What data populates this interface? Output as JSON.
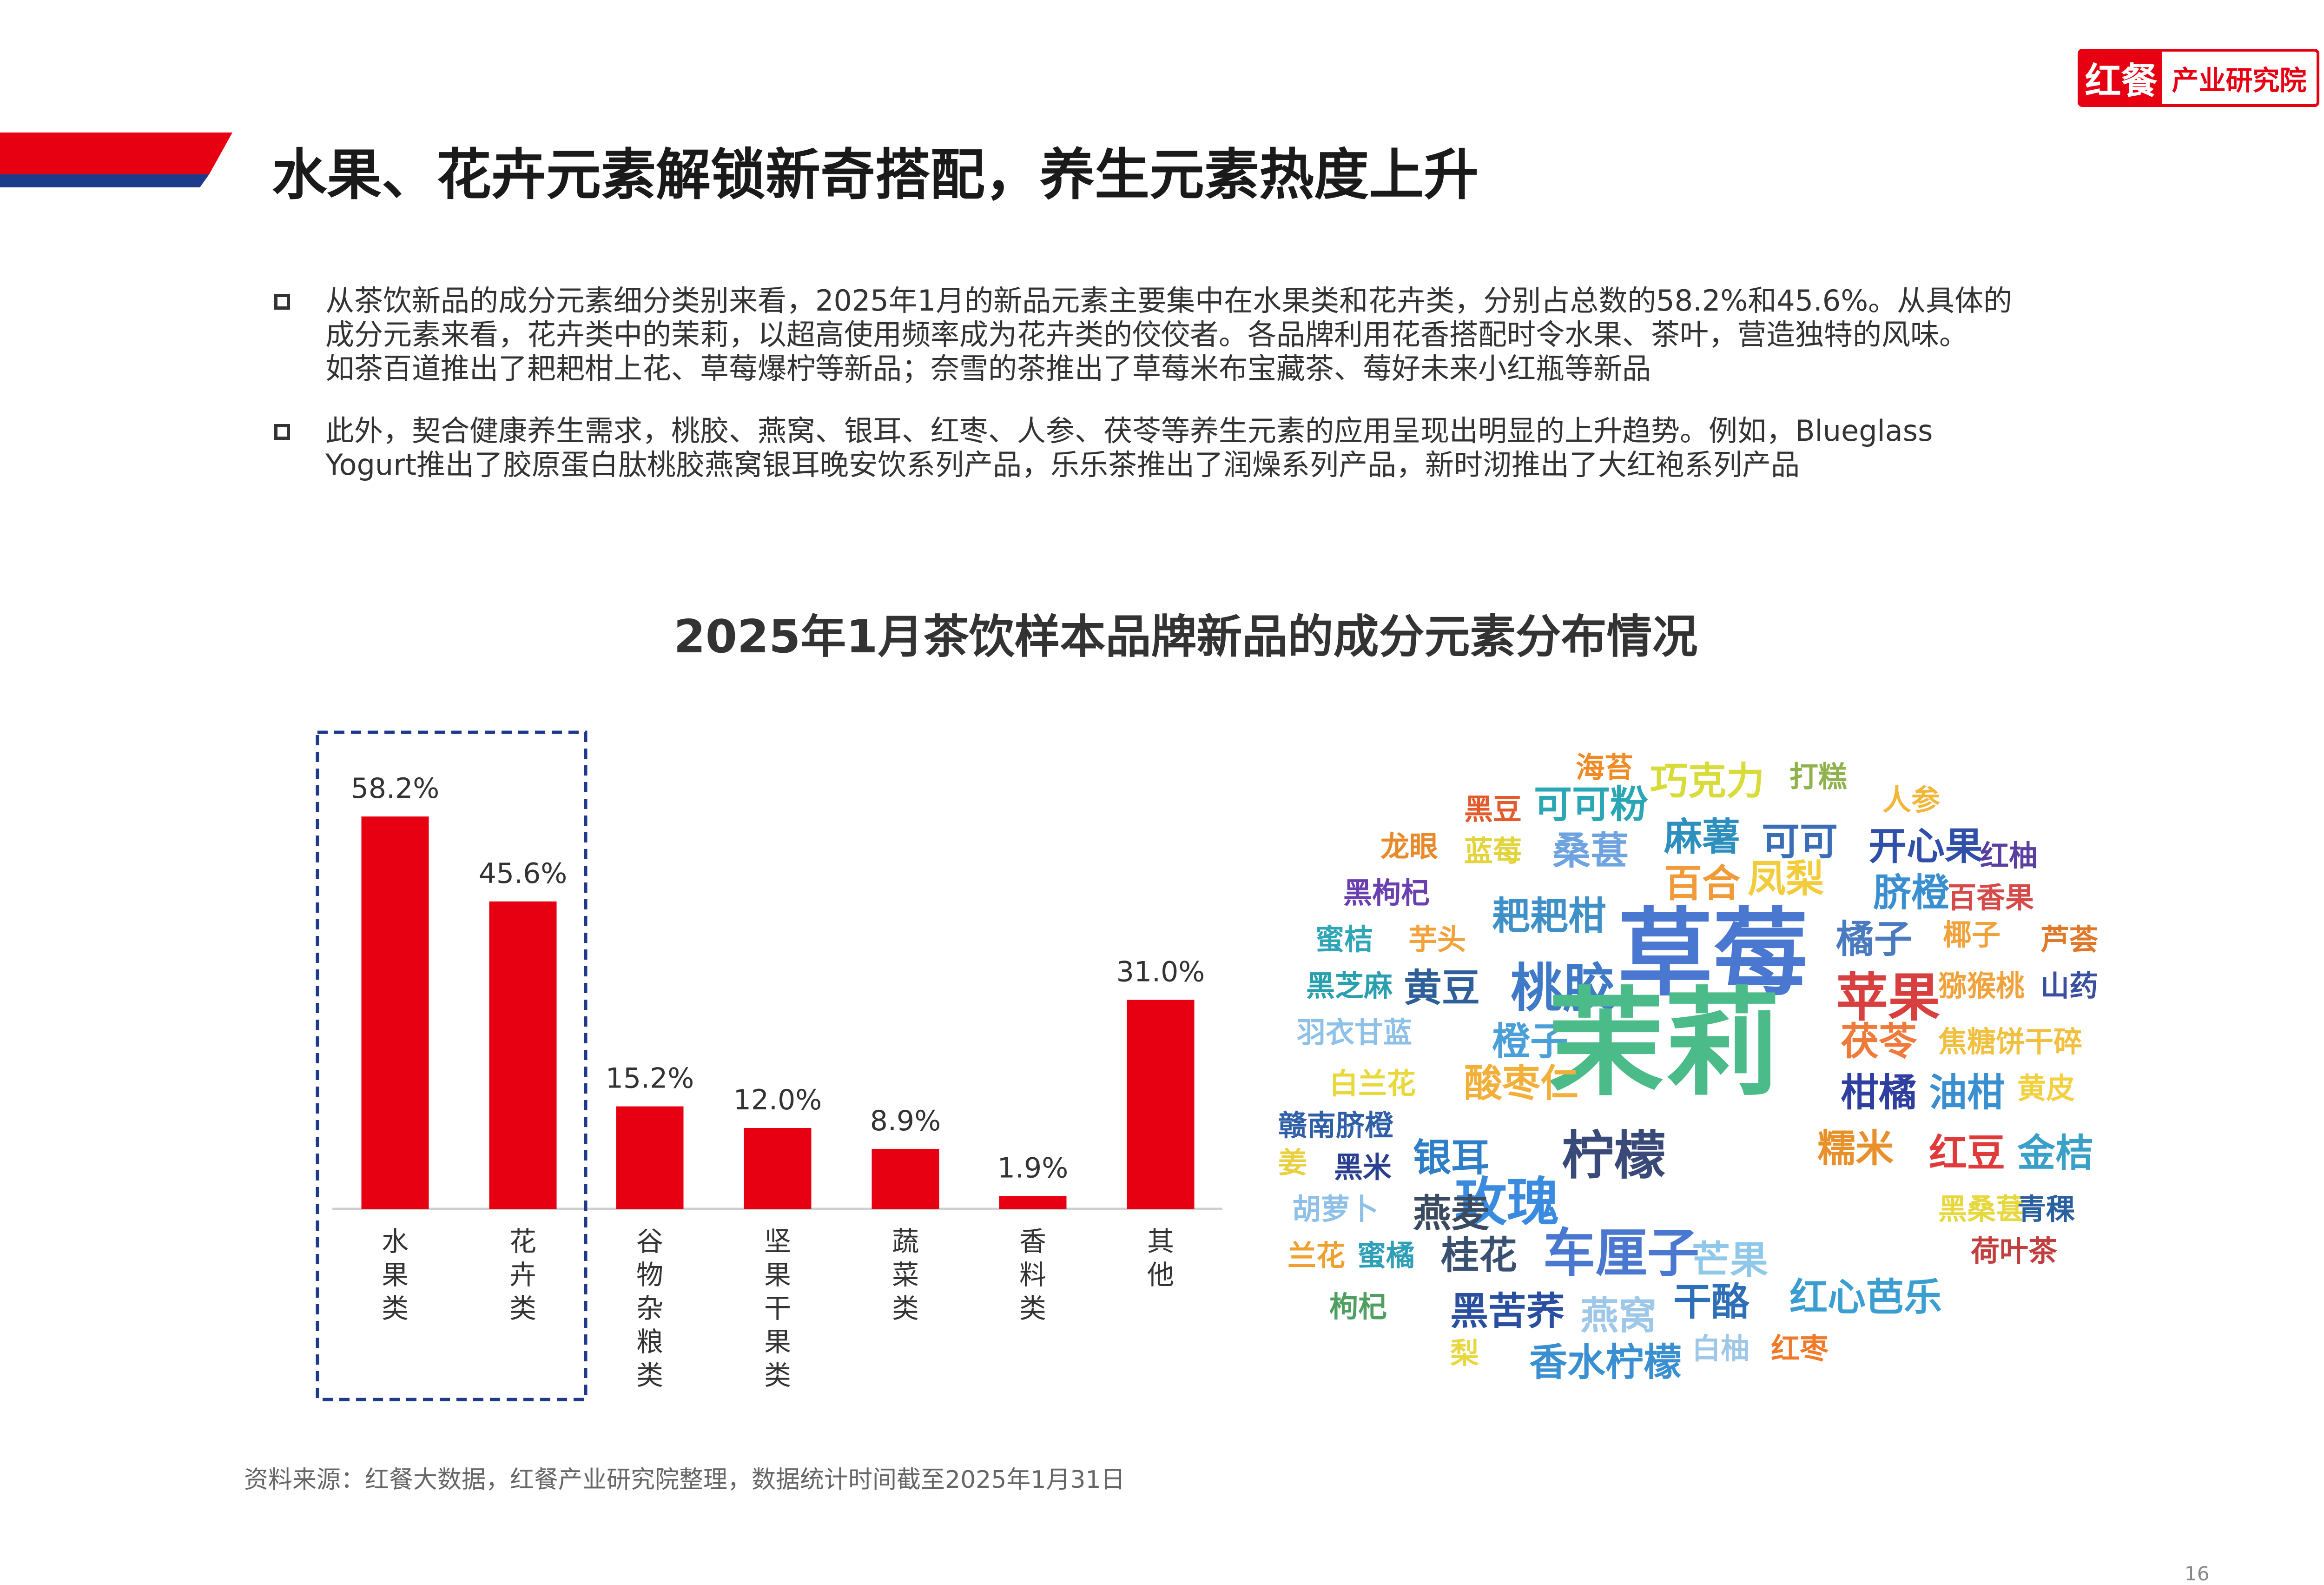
{
  "logo": {
    "mark": "红餐",
    "text": "产业研究院"
  },
  "page_title": "水果、花卉元素解锁新奇搭配，养生元素热度上升",
  "bullets": [
    {
      "lines": [
        "从茶饮新品的成分元素细分类别来看，2025年1月的新品元素主要集中在水果类和花卉类，分别占总数的58.2%和45.6%。从具体的",
        "成分元素来看，花卉类中的茉莉，以超高使用频率成为花卉类的佼佼者。各品牌利用花香搭配时令水果、茶叶，营造独特的风味。",
        "如茶百道推出了耙耙柑上花、草莓爆柠等新品；奈雪的茶推出了草莓米布宝藏茶、莓好未来小红瓶等新品"
      ]
    },
    {
      "lines": [
        "此外，契合健康养生需求，桃胶、燕窝、银耳、红枣、人参、茯苓等养生元素的应用呈现出明显的上升趋势。例如，Blueglass",
        "Yogurt推出了胶原蛋白肽桃胶燕窝银耳晚安饮系列产品，乐乐茶推出了润燥系列产品，新时沏推出了大红袍系列产品"
      ]
    }
  ],
  "chart_title": "2025年1月茶饮样本品牌新品的成分元素分布情况",
  "chart_data": {
    "type": "bar",
    "categories": [
      "水果类",
      "花卉类",
      "谷物杂粮类",
      "坚果干果类",
      "蔬菜类",
      "香料类",
      "其他"
    ],
    "values": [
      58.2,
      45.6,
      15.2,
      12.0,
      8.9,
      1.9,
      31.0
    ],
    "value_labels": [
      "58.2%",
      "45.6%",
      "15.2%",
      "12.0%",
      "8.9%",
      "1.9%",
      "31.0%"
    ],
    "unit": "%",
    "color": "#e60012",
    "highlighted_categories": [
      "水果类",
      "花卉类"
    ],
    "highlight_style": "dashed-box",
    "ylim": [
      0,
      60
    ],
    "grid": false,
    "legend": "none"
  },
  "word_cloud": [
    {
      "text": "海苔",
      "color": "#f08a24",
      "size": "small"
    },
    {
      "text": "巧克力",
      "color": "#d8dc3a",
      "size": "medium"
    },
    {
      "text": "打糕",
      "color": "#8fb24c",
      "size": "small"
    },
    {
      "text": "黑豆",
      "color": "#e35b2b",
      "size": "small"
    },
    {
      "text": "可可粉",
      "color": "#2aa6b5",
      "size": "medium"
    },
    {
      "text": "人参",
      "color": "#f2b63a",
      "size": "small"
    },
    {
      "text": "龙眼",
      "color": "#e8892a",
      "size": "small"
    },
    {
      "text": "蓝莓",
      "color": "#e3d33c",
      "size": "small"
    },
    {
      "text": "桑葚",
      "color": "#6fa3e0",
      "size": "medium"
    },
    {
      "text": "麻薯",
      "color": "#2c8fbe",
      "size": "medium"
    },
    {
      "text": "可可",
      "color": "#3a6db8",
      "size": "medium"
    },
    {
      "text": "开心果",
      "color": "#2f4fa8",
      "size": "medium"
    },
    {
      "text": "红柚",
      "color": "#5a3fa0",
      "size": "small"
    },
    {
      "text": "黑枸杞",
      "color": "#6a3fb0",
      "size": "small"
    },
    {
      "text": "百合",
      "color": "#f09a3a",
      "size": "medium"
    },
    {
      "text": "凤梨",
      "color": "#f2cc3a",
      "size": "medium"
    },
    {
      "text": "脐橙",
      "color": "#3a8fd0",
      "size": "medium"
    },
    {
      "text": "百香果",
      "color": "#d64a4a",
      "size": "small"
    },
    {
      "text": "蜜桔",
      "color": "#2fa5b8",
      "size": "small"
    },
    {
      "text": "芋头",
      "color": "#f2a23a",
      "size": "small"
    },
    {
      "text": "耙耙柑",
      "color": "#3f8fc8",
      "size": "medium"
    },
    {
      "text": "草莓",
      "color": "#4a78d0",
      "size": "xlarge"
    },
    {
      "text": "橘子",
      "color": "#4a7ac0",
      "size": "medium"
    },
    {
      "text": "椰子",
      "color": "#f2a23a",
      "size": "small"
    },
    {
      "text": "芦荟",
      "color": "#e0782a",
      "size": "small"
    },
    {
      "text": "黑芝麻",
      "color": "#2a9fb0",
      "size": "small"
    },
    {
      "text": "黄豆",
      "color": "#2f5f98",
      "size": "medium"
    },
    {
      "text": "桃胶",
      "color": "#3f7ac8",
      "size": "large"
    },
    {
      "text": "苹果",
      "color": "#d84040",
      "size": "large"
    },
    {
      "text": "猕猴桃",
      "color": "#f2a23a",
      "size": "small"
    },
    {
      "text": "山药",
      "color": "#3a4fa0",
      "size": "small"
    },
    {
      "text": "羽衣甘蓝",
      "color": "#8fc0e8",
      "size": "small"
    },
    {
      "text": "橙子",
      "color": "#4a9fd8",
      "size": "medium"
    },
    {
      "text": "茉莉",
      "color": "#4cbb8a",
      "size": "xxlarge"
    },
    {
      "text": "茯苓",
      "color": "#f07a3a",
      "size": "medium"
    },
    {
      "text": "焦糖饼干碎",
      "color": "#f2c040",
      "size": "small"
    },
    {
      "text": "白兰花",
      "color": "#e8d83a",
      "size": "small"
    },
    {
      "text": "酸枣仁",
      "color": "#f2b03a",
      "size": "medium"
    },
    {
      "text": "柑橘",
      "color": "#2f3fa0",
      "size": "medium"
    },
    {
      "text": "油柑",
      "color": "#3a8fd0",
      "size": "medium"
    },
    {
      "text": "黄皮",
      "color": "#f2d040",
      "size": "small"
    },
    {
      "text": "赣南脐橙",
      "color": "#2f5fa8",
      "size": "small"
    },
    {
      "text": "姜",
      "color": "#e8d040",
      "size": "small"
    },
    {
      "text": "黑米",
      "color": "#2a3f90",
      "size": "small"
    },
    {
      "text": "银耳",
      "color": "#2f7fc8",
      "size": "medium"
    },
    {
      "text": "柠檬",
      "color": "#3a4a78",
      "size": "large"
    },
    {
      "text": "糯米",
      "color": "#e8902a",
      "size": "medium"
    },
    {
      "text": "红豆",
      "color": "#e03a3a",
      "size": "medium"
    },
    {
      "text": "金桔",
      "color": "#3aa0c8",
      "size": "medium"
    },
    {
      "text": "玫瑰",
      "color": "#3a8ae0",
      "size": "large"
    },
    {
      "text": "胡萝卜",
      "color": "#8fc0e8",
      "size": "small"
    },
    {
      "text": "燕麦",
      "color": "#3a4a60",
      "size": "medium"
    },
    {
      "text": "黑桑葚",
      "color": "#e8d840",
      "size": "small"
    },
    {
      "text": "青稞",
      "color": "#2a5fa0",
      "size": "small"
    },
    {
      "text": "兰花",
      "color": "#f0a030",
      "size": "small"
    },
    {
      "text": "蜜橘",
      "color": "#2fa0b8",
      "size": "small"
    },
    {
      "text": "桂花",
      "color": "#3a5070",
      "size": "medium"
    },
    {
      "text": "车厘子",
      "color": "#4a78d0",
      "size": "large"
    },
    {
      "text": "芒果",
      "color": "#8fc8e8",
      "size": "medium"
    },
    {
      "text": "荷叶茶",
      "color": "#c04040",
      "size": "small"
    },
    {
      "text": "干酪",
      "color": "#2f6fb8",
      "size": "medium"
    },
    {
      "text": "红心芭乐",
      "color": "#3a9fd0",
      "size": "medium"
    },
    {
      "text": "枸杞",
      "color": "#4fa060",
      "size": "small"
    },
    {
      "text": "黑苦荞",
      "color": "#2a4fa0",
      "size": "medium"
    },
    {
      "text": "燕窝",
      "color": "#9fc8e8",
      "size": "medium"
    },
    {
      "text": "白柚",
      "color": "#9fc8e8",
      "size": "small"
    },
    {
      "text": "红枣",
      "color": "#f07a2a",
      "size": "small"
    },
    {
      "text": "梨",
      "color": "#e8d840",
      "size": "small"
    },
    {
      "text": "香水柠檬",
      "color": "#3a8fd0",
      "size": "medium"
    }
  ],
  "source_note": "资料来源：红餐大数据，红餐产业研究院整理，数据统计时间截至2025年1月31日",
  "page_number": "16",
  "watermark": "红餐 产业研究院"
}
